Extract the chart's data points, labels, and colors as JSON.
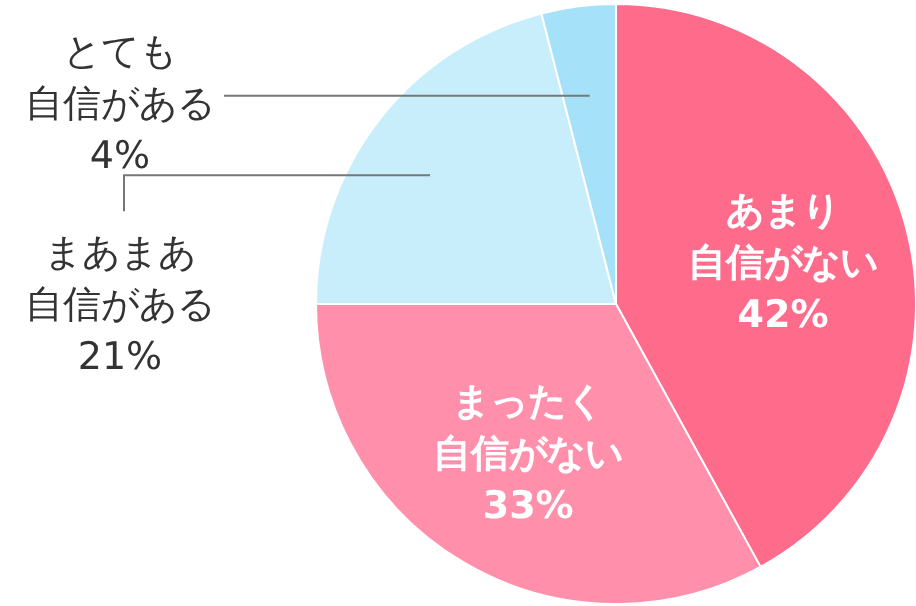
{
  "chart_data": {
    "type": "pie",
    "categories": [
      "あまり自信がない",
      "まったく自信がない",
      "まあまあ自信がある",
      "とても自信がある"
    ],
    "values": [
      42,
      33,
      21,
      4
    ],
    "value_labels": [
      "42%",
      "33%",
      "21%",
      "4%"
    ],
    "colors": [
      "#ff6b8b",
      "#ff8fab",
      "#c8eefc",
      "#a5e1f8"
    ]
  }
}
